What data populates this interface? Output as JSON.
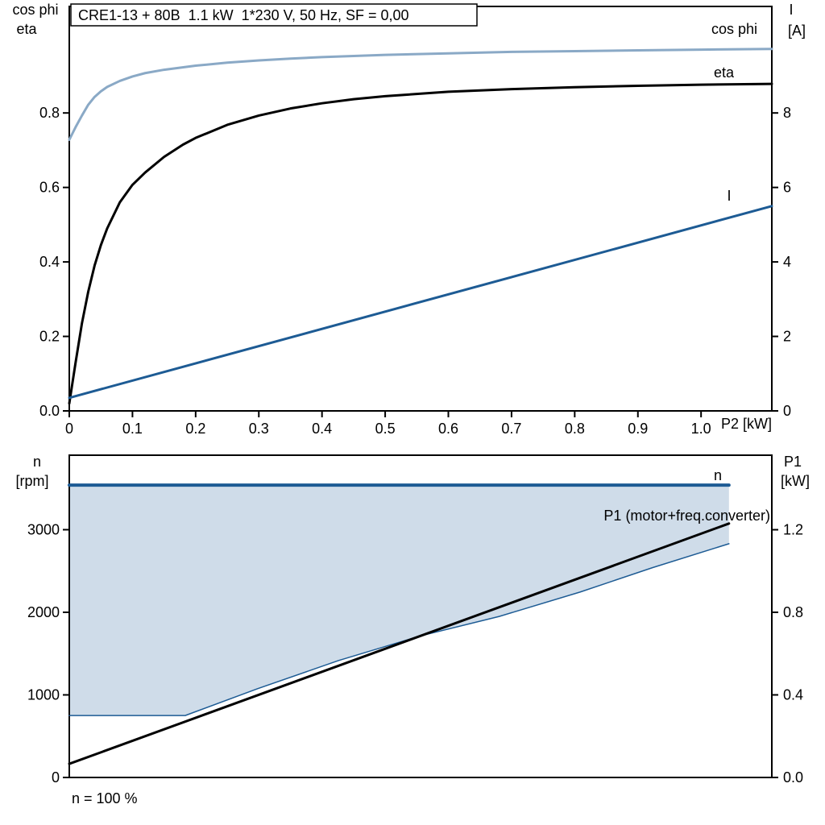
{
  "page": {
    "background": "#ffffff",
    "footer_note": "n = 100 %"
  },
  "colors": {
    "frame": "#000000",
    "dark_blue": "#1d5b94",
    "light_blue": "#8aa9c6",
    "black": "#000000",
    "range_fill": "#cfdce9"
  },
  "chart_data": [
    {
      "type": "line",
      "id": "motor-curves",
      "title": "CRE1-13 + 80B  1.1 kW  1*230 V, 50 Hz, SF = 0,00",
      "x_axis": {
        "label": "P2 [kW]",
        "lim": [
          0,
          1.112
        ],
        "ticks": [
          0,
          0.1,
          0.2,
          0.3,
          0.4,
          0.5,
          0.6,
          0.7,
          0.8,
          0.9,
          1.0
        ],
        "tick_labels": [
          "0",
          "0.1",
          "0.2",
          "0.3",
          "0.4",
          "0.5",
          "0.6",
          "0.7",
          "0.8",
          "0.9",
          "1.0"
        ]
      },
      "left_axis": {
        "title_lines": [
          "cos phi",
          "eta"
        ],
        "lim": [
          0,
          1.086
        ],
        "ticks": [
          0,
          0.2,
          0.4,
          0.6,
          0.8
        ],
        "tick_labels": [
          "0.0",
          "0.2",
          "0.4",
          "0.6",
          "0.8"
        ]
      },
      "right_axis": {
        "title_lines": [
          "I",
          "[A]"
        ],
        "lim": [
          0,
          10.86
        ],
        "ticks": [
          0,
          2,
          4,
          6,
          8
        ],
        "tick_labels": [
          "0",
          "2",
          "4",
          "6",
          "8"
        ]
      },
      "series": [
        {
          "name": "cos phi",
          "axis": "left",
          "color_key": "light_blue",
          "width": 3,
          "points": [
            [
              0,
              0.728
            ],
            [
              0.005,
              0.745
            ],
            [
              0.01,
              0.762
            ],
            [
              0.02,
              0.793
            ],
            [
              0.03,
              0.822
            ],
            [
              0.04,
              0.843
            ],
            [
              0.05,
              0.858
            ],
            [
              0.06,
              0.87
            ],
            [
              0.08,
              0.886
            ],
            [
              0.1,
              0.898
            ],
            [
              0.12,
              0.907
            ],
            [
              0.15,
              0.916
            ],
            [
              0.2,
              0.927
            ],
            [
              0.25,
              0.935
            ],
            [
              0.3,
              0.941
            ],
            [
              0.35,
              0.946
            ],
            [
              0.4,
              0.95
            ],
            [
              0.5,
              0.956
            ],
            [
              0.6,
              0.96
            ],
            [
              0.7,
              0.964
            ],
            [
              0.8,
              0.966
            ],
            [
              0.9,
              0.968
            ],
            [
              1.0,
              0.97
            ],
            [
              1.112,
              0.972
            ]
          ]
        },
        {
          "name": "eta",
          "axis": "left",
          "color_key": "black",
          "width": 3,
          "points": [
            [
              0,
              0.02
            ],
            [
              0.005,
              0.075
            ],
            [
              0.01,
              0.13
            ],
            [
              0.02,
              0.235
            ],
            [
              0.03,
              0.32
            ],
            [
              0.04,
              0.39
            ],
            [
              0.05,
              0.445
            ],
            [
              0.06,
              0.49
            ],
            [
              0.08,
              0.56
            ],
            [
              0.1,
              0.607
            ],
            [
              0.12,
              0.64
            ],
            [
              0.15,
              0.682
            ],
            [
              0.18,
              0.715
            ],
            [
              0.2,
              0.733
            ],
            [
              0.25,
              0.768
            ],
            [
              0.3,
              0.793
            ],
            [
              0.35,
              0.812
            ],
            [
              0.4,
              0.826
            ],
            [
              0.45,
              0.837
            ],
            [
              0.5,
              0.845
            ],
            [
              0.6,
              0.857
            ],
            [
              0.7,
              0.864
            ],
            [
              0.8,
              0.869
            ],
            [
              0.9,
              0.873
            ],
            [
              1.0,
              0.876
            ],
            [
              1.112,
              0.878
            ]
          ]
        },
        {
          "name": "I",
          "axis": "right",
          "color_key": "dark_blue",
          "width": 3,
          "points": [
            [
              0,
              0.35
            ],
            [
              1.112,
              5.5
            ]
          ]
        }
      ]
    },
    {
      "type": "line",
      "id": "speed-power-curves",
      "title": "",
      "x_axis": {
        "label": "",
        "lim": [
          0,
          1
        ],
        "ticks": [],
        "tick_labels": []
      },
      "left_axis": {
        "title_lines": [
          "n",
          "[rpm]"
        ],
        "lim": [
          0,
          3902
        ],
        "ticks": [
          0,
          1000,
          2000,
          3000
        ],
        "tick_labels": [
          "0",
          "1000",
          "2000",
          "3000"
        ]
      },
      "right_axis": {
        "title_lines": [
          "P1",
          "[kW]"
        ],
        "lim": [
          0,
          1.561
        ],
        "ticks": [
          0,
          0.4,
          0.8,
          1.2
        ],
        "tick_labels": [
          "0.0",
          "0.4",
          "0.8",
          "1.2"
        ]
      },
      "fill": {
        "upper": "n",
        "lower": "speed range",
        "color_key": "range_fill"
      },
      "series": [
        {
          "name": "speed range",
          "axis": "left",
          "color_key": "dark_blue",
          "width": 1.5,
          "show_label": false,
          "points": [
            [
              0,
              750
            ],
            [
              0.165,
              750
            ],
            [
              0.268,
              1075
            ],
            [
              0.383,
              1415
            ],
            [
              0.498,
              1710
            ],
            [
              0.612,
              1950
            ],
            [
              0.727,
              2245
            ],
            [
              0.83,
              2540
            ],
            [
              0.939,
              2830
            ]
          ]
        },
        {
          "name": "n",
          "axis": "left",
          "color_key": "dark_blue",
          "width": 4,
          "points": [
            [
              0,
              3540
            ],
            [
              0.939,
              3540
            ]
          ]
        },
        {
          "name": "P1 (motor+freq.converter)",
          "axis": "right",
          "color_key": "black",
          "width": 3,
          "points": [
            [
              0,
              0.066
            ],
            [
              0.939,
              1.23
            ]
          ]
        }
      ],
      "footnote": "n = 100 %"
    }
  ]
}
